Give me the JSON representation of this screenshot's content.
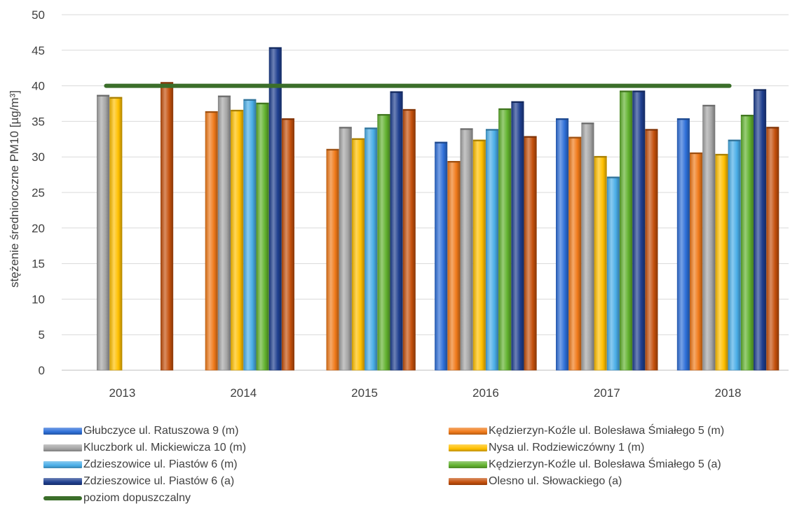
{
  "chart_data": {
    "type": "bar",
    "title": "",
    "xlabel": "",
    "ylabel": "stężenie średnioroczne PM10 [µg/m³]",
    "ylim": [
      0,
      50
    ],
    "yticks": [
      0,
      5,
      10,
      15,
      20,
      25,
      30,
      35,
      40,
      45,
      50
    ],
    "grid": true,
    "legend_position": "bottom",
    "categories": [
      "2013",
      "2014",
      "2015",
      "2016",
      "2017",
      "2018"
    ],
    "series": [
      {
        "name": "Głubczyce ul. Ratuszowa 9 (m)",
        "color": "#2e6fd8",
        "values": [
          null,
          null,
          null,
          32.1,
          35.4,
          35.4
        ]
      },
      {
        "name": "Kędzierzyn-Koźle ul. Bolesława Śmiałego 5 (m)",
        "color": "#f07a1a",
        "values": [
          null,
          36.4,
          31.1,
          29.4,
          32.8,
          30.6
        ]
      },
      {
        "name": "Kluczbork ul. Mickiewicza 10 (m)",
        "color": "#a5a5a5",
        "values": [
          38.7,
          38.6,
          34.2,
          34.0,
          34.8,
          37.3
        ]
      },
      {
        "name": "Nysa ul. Rodziewiczówny 1 (m)",
        "color": "#ffc000",
        "values": [
          38.4,
          36.6,
          32.6,
          32.4,
          30.1,
          30.4
        ]
      },
      {
        "name": "Zdzieszowice ul. Piastów 6 (m)",
        "color": "#4aaee8",
        "values": [
          null,
          38.1,
          34.1,
          33.9,
          27.2,
          32.4
        ]
      },
      {
        "name": "Kędzierzyn-Koźle ul. Bolesława Śmiałego 5 (a)",
        "color": "#62b22f",
        "values": [
          null,
          37.6,
          36.0,
          36.8,
          39.3,
          35.9
        ]
      },
      {
        "name": "Zdzieszowice ul. Piastów 6 (a)",
        "color": "#1f3f8f",
        "values": [
          null,
          45.4,
          39.2,
          37.8,
          39.3,
          39.5
        ]
      },
      {
        "name": "Olesno ul. Słowackiego (a)",
        "color": "#c4500c",
        "values": [
          40.5,
          35.4,
          36.7,
          32.9,
          33.9,
          34.2
        ]
      }
    ],
    "reference_line": {
      "name": "poziom dopuszczalny",
      "value": 40,
      "color": "#3b6e2a"
    }
  }
}
